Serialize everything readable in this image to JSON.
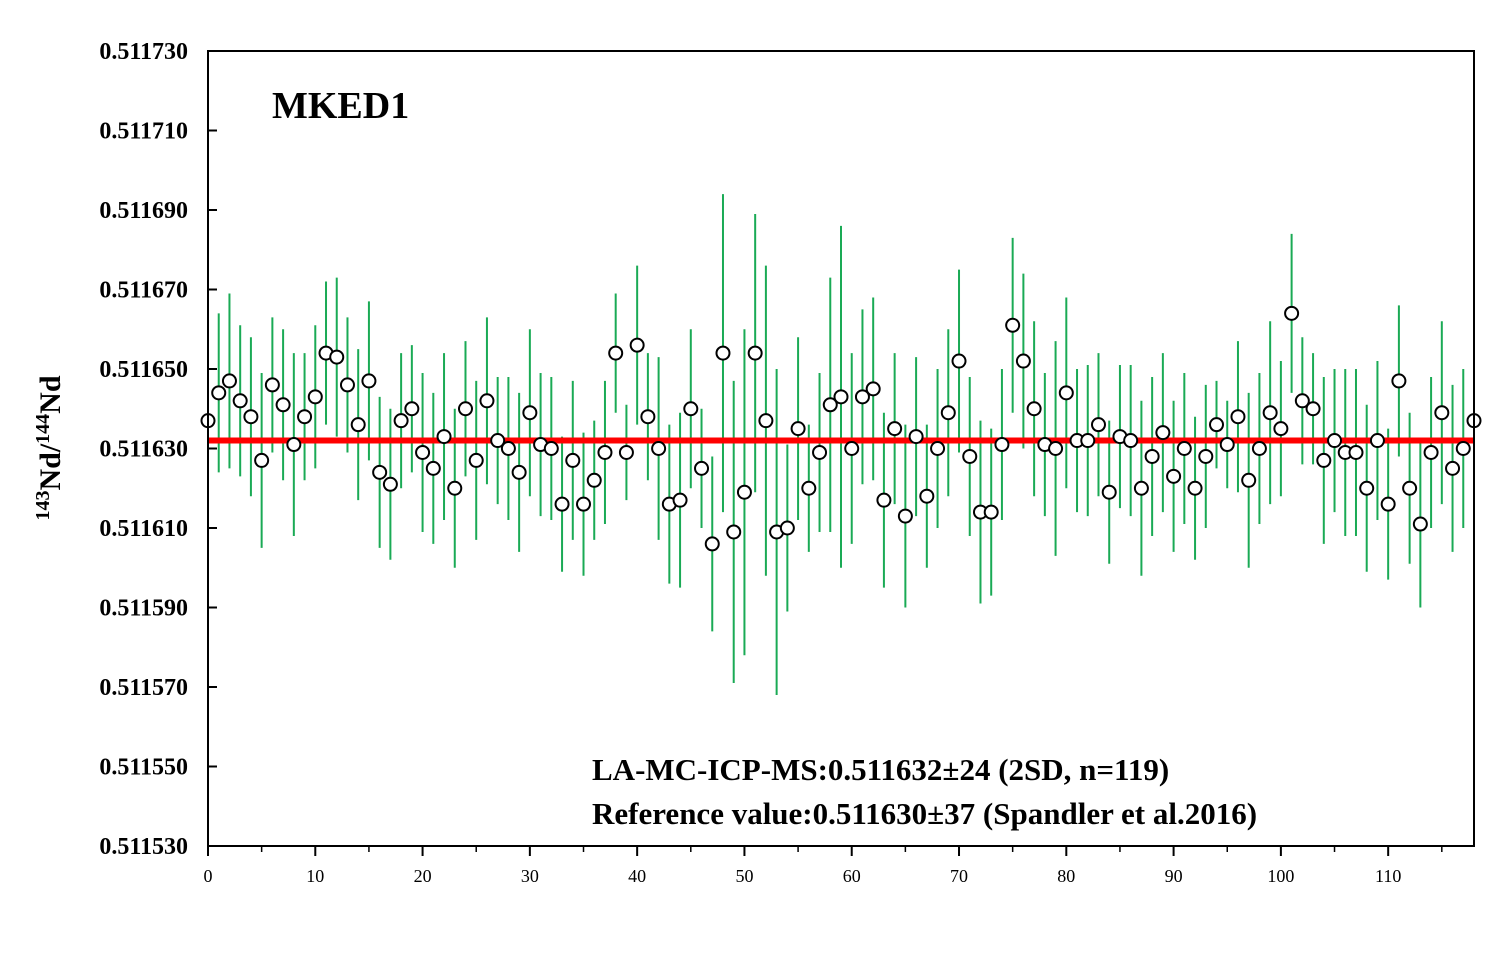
{
  "chart_data": {
    "type": "scatter",
    "title": "",
    "sample_label": "MKED1",
    "ylabel": {
      "sup1": "143",
      "base1": "Nd/",
      "sup2": "144",
      "base2": "Nd"
    },
    "xlabel": "",
    "xlim": [
      0,
      118
    ],
    "ylim": [
      0.51153,
      0.51173
    ],
    "xticks": [
      0,
      10,
      20,
      30,
      40,
      50,
      60,
      70,
      80,
      90,
      100,
      110
    ],
    "yticks": [
      "0.511530",
      "0.511550",
      "0.511570",
      "0.511590",
      "0.511610",
      "0.511630",
      "0.511650",
      "0.511670",
      "0.511690",
      "0.511710",
      "0.511730"
    ],
    "grid": false,
    "reference_line": 0.511632,
    "colors": {
      "point_fill": "#ffffff",
      "point_stroke": "#000000",
      "error_bar": "#1aaa55",
      "reference_line": "#ff0000"
    },
    "annotations": [
      "LA-MC-ICP-MS:0.511632±24 (2SD, n=119)",
      "Reference value:0.511630±37 (Spandler et al.2016)"
    ],
    "series": [
      {
        "x": [
          0,
          1,
          2,
          3,
          4,
          5,
          6,
          7,
          8,
          9,
          10,
          11,
          12,
          13,
          14,
          15,
          16,
          17,
          18,
          19,
          20,
          21,
          22,
          23,
          24,
          25,
          26,
          27,
          28,
          29,
          30,
          31,
          32,
          33,
          34,
          35,
          36,
          37,
          38,
          39,
          40,
          41,
          42,
          43,
          44,
          45,
          46,
          47,
          48,
          49,
          50,
          51,
          52,
          53,
          54,
          55,
          56,
          57,
          58,
          59,
          60,
          61,
          62,
          63,
          64,
          65,
          66,
          67,
          68,
          69,
          70,
          71,
          72,
          73,
          74,
          75,
          76,
          77,
          78,
          79,
          80,
          81,
          82,
          83,
          84,
          85,
          86,
          87,
          88,
          89,
          90,
          91,
          92,
          93,
          94,
          95,
          96,
          97,
          98,
          99,
          100,
          101,
          102,
          103,
          104,
          105,
          106,
          107,
          108,
          109,
          110,
          111,
          112,
          113,
          114,
          115,
          116,
          117,
          118
        ],
        "y": [
          0.511637,
          0.511644,
          0.511647,
          0.511642,
          0.511638,
          0.511627,
          0.511646,
          0.511641,
          0.511631,
          0.511638,
          0.511643,
          0.511654,
          0.511653,
          0.511646,
          0.511636,
          0.511647,
          0.511624,
          0.511621,
          0.511637,
          0.51164,
          0.511629,
          0.511625,
          0.511633,
          0.51162,
          0.51164,
          0.511627,
          0.511642,
          0.511632,
          0.51163,
          0.511624,
          0.511639,
          0.511631,
          0.51163,
          0.511616,
          0.511627,
          0.511616,
          0.511622,
          0.511629,
          0.511654,
          0.511629,
          0.511656,
          0.511638,
          0.51163,
          0.511616,
          0.511617,
          0.51164,
          0.511625,
          0.511606,
          0.511654,
          0.511609,
          0.511619,
          0.511654,
          0.511637,
          0.511609,
          0.51161,
          0.511635,
          0.51162,
          0.511629,
          0.511641,
          0.511643,
          0.51163,
          0.511643,
          0.511645,
          0.511617,
          0.511635,
          0.511613,
          0.511633,
          0.511618,
          0.51163,
          0.511639,
          0.511652,
          0.511628,
          0.511614,
          0.511614,
          0.511631,
          0.511661,
          0.511652,
          0.51164,
          0.511631,
          0.51163,
          0.511644,
          0.511632,
          0.511632,
          0.511636,
          0.511619,
          0.511633,
          0.511632,
          0.51162,
          0.511628,
          0.511634,
          0.511623,
          0.51163,
          0.51162,
          0.511628,
          0.511636,
          0.511631,
          0.511638,
          0.511622,
          0.51163,
          0.511639,
          0.511635,
          0.511664,
          0.511642,
          0.51164,
          0.511627,
          0.511632,
          0.511629,
          0.511629,
          0.51162,
          0.511632,
          0.511616,
          0.511647,
          0.51162,
          0.511611,
          0.511629,
          0.511639,
          0.511625,
          0.51163,
          0.511637
        ],
        "err": [
          1.8e-05,
          2e-05,
          2.2e-05,
          1.9e-05,
          2e-05,
          2.2e-05,
          1.7e-05,
          1.9e-05,
          2.3e-05,
          1.6e-05,
          1.8e-05,
          1.8e-05,
          2e-05,
          1.7e-05,
          1.9e-05,
          2e-05,
          1.9e-05,
          1.9e-05,
          1.7e-05,
          1.6e-05,
          2e-05,
          1.9e-05,
          2.1e-05,
          2e-05,
          1.7e-05,
          2e-05,
          2.1e-05,
          1.6e-05,
          1.8e-05,
          2e-05,
          2.1e-05,
          1.8e-05,
          1.8e-05,
          1.7e-05,
          2e-05,
          1.8e-05,
          1.5e-05,
          1.8e-05,
          1.5e-05,
          1.2e-05,
          2e-05,
          1.6e-05,
          2.3e-05,
          2e-05,
          2.2e-05,
          2e-05,
          1.5e-05,
          2.2e-05,
          4e-05,
          3.8e-05,
          4.1e-05,
          3.5e-05,
          3.9e-05,
          4.1e-05,
          2.1e-05,
          2.3e-05,
          1.6e-05,
          2e-05,
          3.2e-05,
          4.3e-05,
          2.4e-05,
          2.2e-05,
          2.3e-05,
          2.2e-05,
          1.9e-05,
          2.3e-05,
          2e-05,
          1.8e-05,
          2e-05,
          2.1e-05,
          2.3e-05,
          2e-05,
          2.3e-05,
          2.1e-05,
          1.9e-05,
          2.2e-05,
          2.2e-05,
          2.2e-05,
          1.8e-05,
          2.7e-05,
          2.4e-05,
          1.8e-05,
          1.9e-05,
          1.8e-05,
          1.8e-05,
          1.8e-05,
          1.9e-05,
          2.2e-05,
          2e-05,
          2e-05,
          1.9e-05,
          1.9e-05,
          1.8e-05,
          1.8e-05,
          1.1e-05,
          1.1e-05,
          1.9e-05,
          2.2e-05,
          1.9e-05,
          2.3e-05,
          1.7e-05,
          2e-05,
          1.6e-05,
          1.4e-05,
          2.1e-05,
          1.8e-05,
          2.1e-05,
          2.1e-05,
          2.1e-05,
          2e-05,
          1.9e-05,
          1.9e-05,
          1.9e-05,
          2.1e-05,
          1.9e-05,
          2.3e-05,
          2.1e-05,
          2e-05,
          2.5e-05
        ]
      }
    ]
  }
}
